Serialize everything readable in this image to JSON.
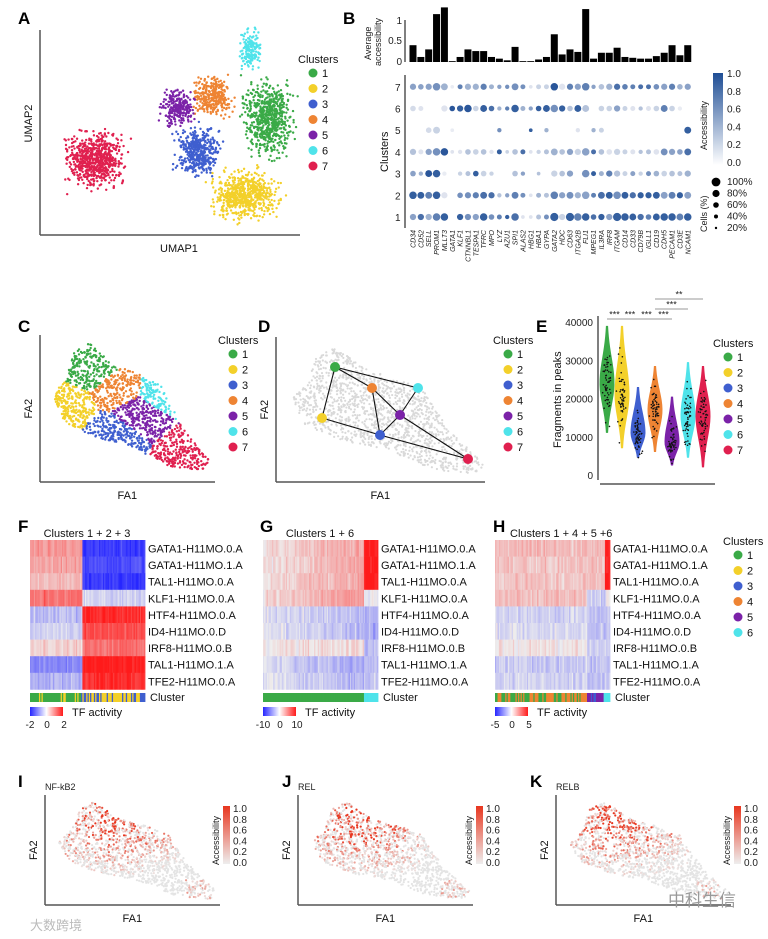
{
  "colors": {
    "1": "#3aaa47",
    "2": "#f3d02a",
    "3": "#3f5fcf",
    "4": "#ee8433",
    "5": "#7b22a8",
    "6": "#4fe3ea",
    "7": "#e0204f",
    "acc_high": "#1f4e95",
    "tf_neg": "#2626ff",
    "tf_pos": "#ff1a1a",
    "fa_acc": "#e8361f",
    "gray": "#d9d9d9"
  },
  "panels": {
    "A": "A",
    "B": "B",
    "C": "C",
    "D": "D",
    "E": "E",
    "F": "F",
    "G": "G",
    "H": "H",
    "I": "I",
    "J": "J",
    "K": "K"
  },
  "watermarks": {
    "left": "大数跨境",
    "right": "中科生信"
  },
  "chart_data": [
    {
      "id": "A",
      "type": "scatter",
      "xlabel": "UMAP1",
      "ylabel": "UMAP2",
      "legend_title": "Clusters",
      "legend": [
        "1",
        "2",
        "3",
        "4",
        "5",
        "6",
        "7"
      ]
    },
    {
      "id": "B",
      "type": "bar+dotplot",
      "bar_ylabel": "Average accessibility",
      "bar_ticks": [
        "1",
        "0.5",
        "0"
      ],
      "ylabel": "Clusters",
      "genes": [
        "CD34",
        "CD52",
        "SELL",
        "PROM1",
        "MLLT3",
        "GATA1",
        "KLF1",
        "CTNNBL1",
        "TESPA1",
        "TFRC",
        "MPO",
        "LYZ",
        "AZU1",
        "SPI1",
        "ALAS2",
        "HBG1",
        "HBA1",
        "GYPA",
        "GATA2",
        "HDC",
        "CD63",
        "ITGA2B",
        "FLI1",
        "MPEG1",
        "IL3RA",
        "IRF8",
        "ITGAM",
        "CD14",
        "CD33",
        "CD79B",
        "IGLL1",
        "CD19",
        "CDH5",
        "PECAM1",
        "CD3E",
        "NCAM1"
      ],
      "avg_accessibility": [
        0.2,
        0.06,
        0.15,
        0.57,
        0.65,
        0.01,
        0.06,
        0.15,
        0.13,
        0.13,
        0.06,
        0.04,
        0.02,
        0.18,
        0.01,
        0.01,
        0.03,
        0.06,
        0.33,
        0.09,
        0.15,
        0.12,
        0.63,
        0.04,
        0.11,
        0.11,
        0.17,
        0.06,
        0.05,
        0.04,
        0.04,
        0.07,
        0.11,
        0.2,
        0.08,
        0.2
      ],
      "clusters": [
        "1",
        "2",
        "3",
        "4",
        "5",
        "6",
        "7"
      ],
      "accessibility": {
        "1": [
          0.5,
          0.8,
          0.4,
          0.7,
          0.9,
          0,
          0.9,
          0.6,
          0.5,
          0.9,
          0.6,
          0.7,
          0.9,
          0.8,
          0.1,
          0.1,
          0.3,
          0.6,
          0.9,
          0.2,
          0.9,
          0.7,
          0.9,
          0.8,
          0.9,
          0.5,
          0.9,
          0.9,
          0.9,
          0.8,
          0.7,
          0.9,
          0.9,
          0.9,
          0.7,
          0.9
        ],
        "2": [
          0.9,
          0.9,
          0.7,
          0.9,
          0.1,
          0,
          0.6,
          0.6,
          0.7,
          0.8,
          0.8,
          0.3,
          0.5,
          0.7,
          0.6,
          0.1,
          0.4,
          0.3,
          0.7,
          0.5,
          0.6,
          0.4,
          0.5,
          0.7,
          0.8,
          0.9,
          0.6,
          0.9,
          0.8,
          0.9,
          0.9,
          0.9,
          0.5,
          0.7,
          0.9,
          0.5
        ],
        "3": [
          0.5,
          0.4,
          0.95,
          0.9,
          0.05,
          0,
          0.2,
          0.3,
          0.9,
          0.2,
          0.2,
          0,
          0,
          0.3,
          0.5,
          0,
          0.3,
          0,
          0.2,
          0.3,
          0.5,
          0,
          0.6,
          0.9,
          0.4,
          0.7,
          0.3,
          0.2,
          0.5,
          0.2,
          0.6,
          0.4,
          0.2,
          0.3,
          0.3,
          0.4
        ],
        "4": [
          0.3,
          0.1,
          0.5,
          0.6,
          0.95,
          0.1,
          0.1,
          0.3,
          0.2,
          0.3,
          0.1,
          0.9,
          0.2,
          0.3,
          0.8,
          0.1,
          0.2,
          0.3,
          0.4,
          0.3,
          0.5,
          0.2,
          0.5,
          0.8,
          0.3,
          0.1,
          0.2,
          0.2,
          0.1,
          0.3,
          0.3,
          0.1,
          0.6,
          0.5,
          0.5,
          0.8
        ],
        "5": [
          0,
          0,
          0.15,
          0.2,
          0,
          0.05,
          0,
          0,
          0,
          0,
          0,
          0.6,
          0,
          0,
          0,
          0.9,
          0,
          0.4,
          0,
          0,
          0,
          0.1,
          0,
          0.4,
          0.2,
          0,
          0,
          0,
          0,
          0,
          0,
          0,
          0,
          0,
          0,
          0.9
        ],
        "6": [
          0.15,
          0.1,
          0,
          0,
          0.1,
          0.95,
          0.9,
          0.95,
          0.2,
          0.9,
          0.8,
          0.4,
          0.7,
          0.9,
          0.4,
          0.5,
          0.9,
          0.9,
          0.6,
          0.9,
          0.3,
          0.9,
          0.3,
          0,
          0.2,
          0.2,
          0.5,
          0.2,
          0.1,
          0.3,
          0.1,
          0.2,
          0.7,
          0.2,
          0.05,
          0
        ],
        "7": [
          0.5,
          0.5,
          0.5,
          0.6,
          0.4,
          0.05,
          0.7,
          0.4,
          0.4,
          0.7,
          0.4,
          0.5,
          0.6,
          0.6,
          0.6,
          0.1,
          0.2,
          0.2,
          0.95,
          0.1,
          0.7,
          0.5,
          0.7,
          0.5,
          0.3,
          0.4,
          0.8,
          0.7,
          0.7,
          0.8,
          0.8,
          0.6,
          0.5,
          0.7,
          0.4,
          0.5
        ]
      },
      "cells_pct": {
        "1": [
          60,
          60,
          60,
          80,
          80,
          0,
          60,
          60,
          60,
          80,
          50,
          40,
          30,
          80,
          20,
          20,
          40,
          40,
          90,
          60,
          90,
          80,
          80,
          50,
          60,
          60,
          90,
          80,
          70,
          60,
          50,
          70,
          80,
          80,
          70,
          80
        ],
        "2": [
          80,
          70,
          70,
          80,
          60,
          0,
          50,
          60,
          60,
          70,
          60,
          30,
          30,
          70,
          40,
          20,
          40,
          40,
          80,
          60,
          70,
          60,
          80,
          40,
          70,
          70,
          80,
          70,
          60,
          60,
          60,
          70,
          70,
          70,
          60,
          70
        ],
        "3": [
          50,
          30,
          70,
          80,
          30,
          0,
          30,
          40,
          50,
          50,
          30,
          0,
          0,
          50,
          30,
          0,
          20,
          0,
          60,
          50,
          60,
          0,
          80,
          40,
          40,
          60,
          60,
          40,
          40,
          30,
          40,
          50,
          50,
          50,
          40,
          60
        ],
        "4": [
          60,
          40,
          60,
          80,
          80,
          20,
          30,
          50,
          50,
          50,
          30,
          40,
          20,
          50,
          40,
          20,
          30,
          40,
          70,
          50,
          60,
          60,
          80,
          40,
          50,
          50,
          60,
          40,
          40,
          30,
          40,
          50,
          70,
          60,
          50,
          70
        ],
        "5": [
          0,
          0,
          50,
          70,
          0,
          20,
          0,
          0,
          0,
          0,
          0,
          30,
          0,
          0,
          0,
          20,
          0,
          30,
          0,
          0,
          0,
          30,
          0,
          30,
          40,
          0,
          0,
          0,
          0,
          0,
          0,
          0,
          0,
          0,
          0,
          70
        ],
        "6": [
          50,
          40,
          0,
          0,
          60,
          50,
          60,
          80,
          50,
          70,
          50,
          30,
          30,
          80,
          40,
          30,
          50,
          70,
          80,
          60,
          50,
          70,
          70,
          0,
          50,
          50,
          60,
          40,
          40,
          30,
          40,
          50,
          70,
          50,
          30,
          0
        ],
        "7": [
          60,
          50,
          60,
          80,
          70,
          20,
          40,
          60,
          60,
          60,
          40,
          30,
          30,
          70,
          40,
          20,
          40,
          40,
          80,
          60,
          60,
          60,
          80,
          30,
          50,
          60,
          60,
          50,
          40,
          40,
          40,
          50,
          60,
          60,
          50,
          60
        ]
      },
      "color_legend": {
        "title": "Accessibility",
        "ticks": [
          "1.0",
          "0.8",
          "0.6",
          "0.4",
          "0.2",
          "0.0"
        ]
      },
      "size_legend": {
        "title": "Cells (%)",
        "ticks": [
          "100%",
          "80%",
          "60%",
          "40%",
          "20%"
        ]
      }
    },
    {
      "id": "C",
      "type": "scatter",
      "xlabel": "FA1",
      "ylabel": "FA2",
      "legend_title": "Clusters",
      "legend": [
        "1",
        "2",
        "3",
        "4",
        "5",
        "6",
        "7"
      ]
    },
    {
      "id": "D",
      "type": "graph",
      "xlabel": "FA1",
      "ylabel": "FA2",
      "legend_title": "Clusters",
      "legend": [
        "1",
        "2",
        "3",
        "4",
        "5",
        "6",
        "7"
      ],
      "edges": [
        [
          "1",
          "2"
        ],
        [
          "1",
          "4"
        ],
        [
          "1",
          "6"
        ],
        [
          "4",
          "3"
        ],
        [
          "4",
          "5"
        ],
        [
          "6",
          "5"
        ],
        [
          "5",
          "3"
        ],
        [
          "5",
          "7"
        ],
        [
          "2",
          "3"
        ],
        [
          "3",
          "7"
        ]
      ]
    },
    {
      "id": "E",
      "type": "violin",
      "ylabel": "Fragments in peaks",
      "ylim": [
        0,
        42000
      ],
      "yticks": [
        "0",
        "10000",
        "20000",
        "30000",
        "40000"
      ],
      "legend_title": "Clusters",
      "categories": [
        "1",
        "2",
        "3",
        "4",
        "5",
        "6",
        "7"
      ],
      "median": [
        24000,
        21000,
        11000,
        17000,
        8500,
        15500,
        15500
      ],
      "min": [
        11000,
        7000,
        4500,
        6000,
        2500,
        4500,
        2000
      ],
      "max": [
        39000,
        39000,
        23000,
        28500,
        20500,
        29500,
        28500
      ],
      "significance": [
        {
          "pair": [
            "1",
            "2"
          ],
          "label": "***"
        },
        {
          "pair": [
            "2",
            "3"
          ],
          "label": "***"
        },
        {
          "pair": [
            "3",
            "4"
          ],
          "label": "***"
        },
        {
          "pair": [
            "4",
            "5"
          ],
          "label": "***"
        },
        {
          "pair": [
            "4",
            "6"
          ],
          "label": "***"
        },
        {
          "pair": [
            "4",
            "7"
          ],
          "label": "**"
        }
      ]
    },
    {
      "id": "F",
      "type": "heatmap",
      "title": "Clusters 1 + 2 + 3",
      "legend_label": "TF activity",
      "scale": [
        -2,
        2
      ],
      "scale_ticks": [
        "-2",
        "0",
        "2"
      ],
      "cluster_label": "Cluster",
      "rows": [
        "GATA1-H11MO.0.A",
        "GATA1-H11MO.1.A",
        "TAL1-H11MO.0.A",
        "KLF1-H11MO.0.A",
        "HTF4-H11MO.0.A",
        "ID4-H11MO.0.D",
        "IRF8-H11MO.0.B",
        "TAL1-H11MO.1.A",
        "TFE2-H11MO.0.A"
      ],
      "groups": [
        {
          "cluster": "1",
          "share": 0.45
        },
        {
          "cluster": "2/3",
          "share": 0.55
        }
      ],
      "group_means": [
        [
          0.8,
          -1.8
        ],
        [
          0.7,
          -1.6
        ],
        [
          0.5,
          -1.8
        ],
        [
          1.2,
          -0.3
        ],
        [
          -0.5,
          1.8
        ],
        [
          -0.3,
          1.5
        ],
        [
          0.3,
          1.2
        ],
        [
          -1.0,
          2.0
        ],
        [
          -0.6,
          1.8
        ]
      ]
    },
    {
      "id": "G",
      "type": "heatmap",
      "title": "Clusters 1 + 6",
      "legend_label": "TF activity",
      "scale": [
        -10,
        10
      ],
      "scale_ticks": [
        "-10",
        "0",
        "10"
      ],
      "cluster_label": "Cluster",
      "rows": [
        "GATA1-H11MO.0.A",
        "GATA1-H11MO.1.A",
        "TAL1-H11MO.0.A",
        "KLF1-H11MO.0.A",
        "HTF4-H11MO.0.A",
        "ID4-H11MO.0.D",
        "IRF8-H11MO.0.B",
        "TAL1-H11MO.1.A",
        "TFE2-H11MO.0.A"
      ],
      "groups": [
        {
          "cluster": "1",
          "share": 0.88
        },
        {
          "cluster": "6",
          "share": 0.12
        }
      ],
      "group_means": [
        [
          2,
          10
        ],
        [
          2,
          10
        ],
        [
          2,
          10
        ],
        [
          2.5,
          0
        ],
        [
          -1.5,
          -3
        ],
        [
          -1.5,
          -3.5
        ],
        [
          0.8,
          -2
        ],
        [
          -2,
          -2.5
        ],
        [
          -1.5,
          -2
        ]
      ]
    },
    {
      "id": "H",
      "type": "heatmap",
      "title": "Clusters 1 + 4 + 5 +6",
      "legend_label": "TF activity",
      "scale": [
        -5,
        5
      ],
      "scale_ticks": [
        "-5",
        "0",
        "5"
      ],
      "cluster_label": "Cluster",
      "rows": [
        "GATA1-H11MO.0.A",
        "GATA1-H11MO.1.A",
        "TAL1-H11MO.0.A",
        "KLF1-H11MO.0.A",
        "HTF4-H11MO.0.A",
        "ID4-H11MO.0.D",
        "IRF8-H11MO.0.B",
        "TAL1-H11MO.1.A",
        "TFE2-H11MO.0.A"
      ],
      "groups": [
        {
          "cluster": "1/4",
          "share": 0.8
        },
        {
          "cluster": "5",
          "share": 0.15
        },
        {
          "cluster": "6",
          "share": 0.05
        }
      ],
      "group_means": [
        [
          1.2,
          1.3,
          5
        ],
        [
          1,
          1.2,
          5
        ],
        [
          1,
          1.2,
          5
        ],
        [
          1.2,
          -0.8,
          0
        ],
        [
          -0.7,
          -1.2,
          -1
        ],
        [
          -0.5,
          -1,
          -1
        ],
        [
          0.3,
          -0.8,
          -0.8
        ],
        [
          -0.9,
          -1.2,
          -1
        ],
        [
          -0.7,
          -1.2,
          -1
        ]
      ],
      "legend_title": "Clusters",
      "legend": [
        "1",
        "2",
        "3",
        "4",
        "5",
        "6"
      ]
    },
    {
      "id": "I",
      "type": "scatter",
      "title": "NF-kB2",
      "xlabel": "FA1",
      "ylabel": "FA2",
      "legend_title": "Accessibility",
      "ticks": [
        "1.0",
        "0.8",
        "0.6",
        "0.4",
        "0.2",
        "0.0"
      ]
    },
    {
      "id": "J",
      "type": "scatter",
      "title": "REL",
      "xlabel": "FA1",
      "ylabel": "FA2",
      "legend_title": "Accessibility",
      "ticks": [
        "1.0",
        "0.8",
        "0.6",
        "0.4",
        "0.2",
        "0.0"
      ]
    },
    {
      "id": "K",
      "type": "scatter",
      "title": "RELB",
      "xlabel": "FA1",
      "ylabel": "FA2",
      "legend_title": "Accessibility",
      "ticks": [
        "1.0",
        "0.8",
        "0.6",
        "0.4",
        "0.2",
        "0.0"
      ]
    }
  ]
}
